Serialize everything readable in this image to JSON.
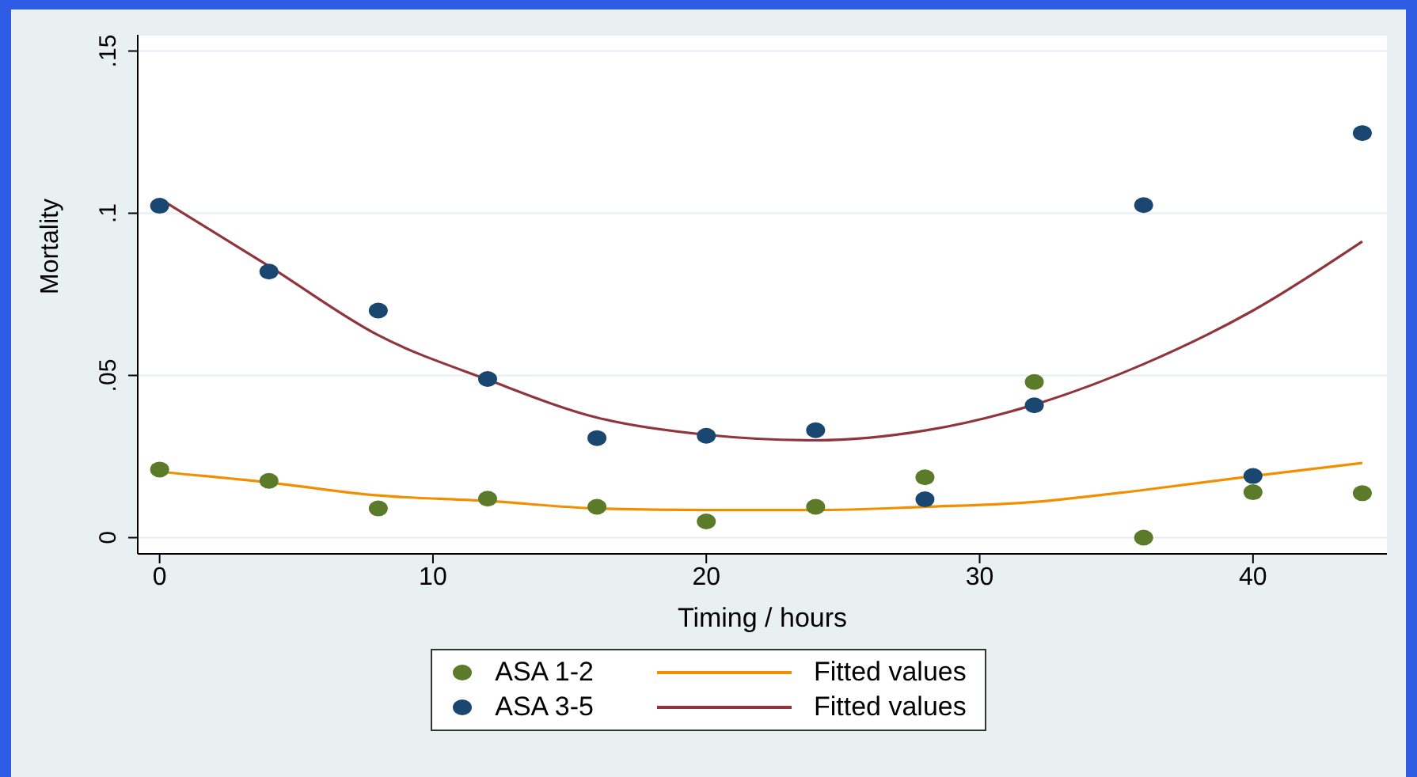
{
  "chart_data": {
    "type": "scatter",
    "xlabel": "Timing / hours",
    "ylabel": "Mortality",
    "xlim": [
      -0.8,
      44.9
    ],
    "xticks": [
      0,
      10,
      20,
      30,
      40
    ],
    "ylim": [
      -0.005,
      0.155
    ],
    "yticks": [
      {
        "value": 0,
        "label": "0"
      },
      {
        "value": 0.05,
        "label": ".05"
      },
      {
        "value": 0.1,
        "label": ".1"
      },
      {
        "value": 0.15,
        "label": ".15"
      }
    ],
    "grid": "y",
    "legend": "bottom",
    "marker": "circle",
    "series": [
      {
        "name": "ASA 1-2",
        "color": "#5b7b2b",
        "x": [
          0,
          4,
          8,
          12,
          16,
          20,
          24,
          28,
          32,
          36,
          40,
          44
        ],
        "values": [
          0.021,
          0.0175,
          0.009,
          0.012,
          0.0095,
          0.005,
          0.0095,
          0.0186,
          0.048,
          0,
          0.014,
          0.0137
        ]
      },
      {
        "name": "Fitted values",
        "type": "line",
        "marker": "none",
        "color": "#f28f00",
        "x": [
          0,
          4,
          8,
          12,
          16,
          20,
          24,
          28,
          32,
          36,
          40,
          44
        ],
        "values": [
          0.0203,
          0.017,
          0.013,
          0.0113,
          0.009,
          0.0085,
          0.0085,
          0.0095,
          0.011,
          0.0147,
          0.019,
          0.023
        ]
      },
      {
        "name": "ASA 3-5",
        "color": "#1a476f",
        "x": [
          0,
          4,
          8,
          12,
          16,
          20,
          24,
          28,
          32,
          36,
          40,
          44
        ],
        "values": [
          0.1023,
          0.082,
          0.07,
          0.0489,
          0.0307,
          0.0314,
          0.0331,
          0.0118,
          0.0408,
          0.1025,
          0.019,
          0.1247
        ]
      },
      {
        "name": "Fitted values",
        "type": "line",
        "marker": "none",
        "color": "#90353b",
        "x": [
          0,
          4,
          8,
          12,
          16,
          20,
          24,
          28,
          32,
          36,
          40,
          44
        ],
        "values": [
          0.1045,
          0.0837,
          0.0624,
          0.0487,
          0.037,
          0.0317,
          0.03,
          0.033,
          0.041,
          0.0535,
          0.07,
          0.0913
        ]
      }
    ]
  }
}
